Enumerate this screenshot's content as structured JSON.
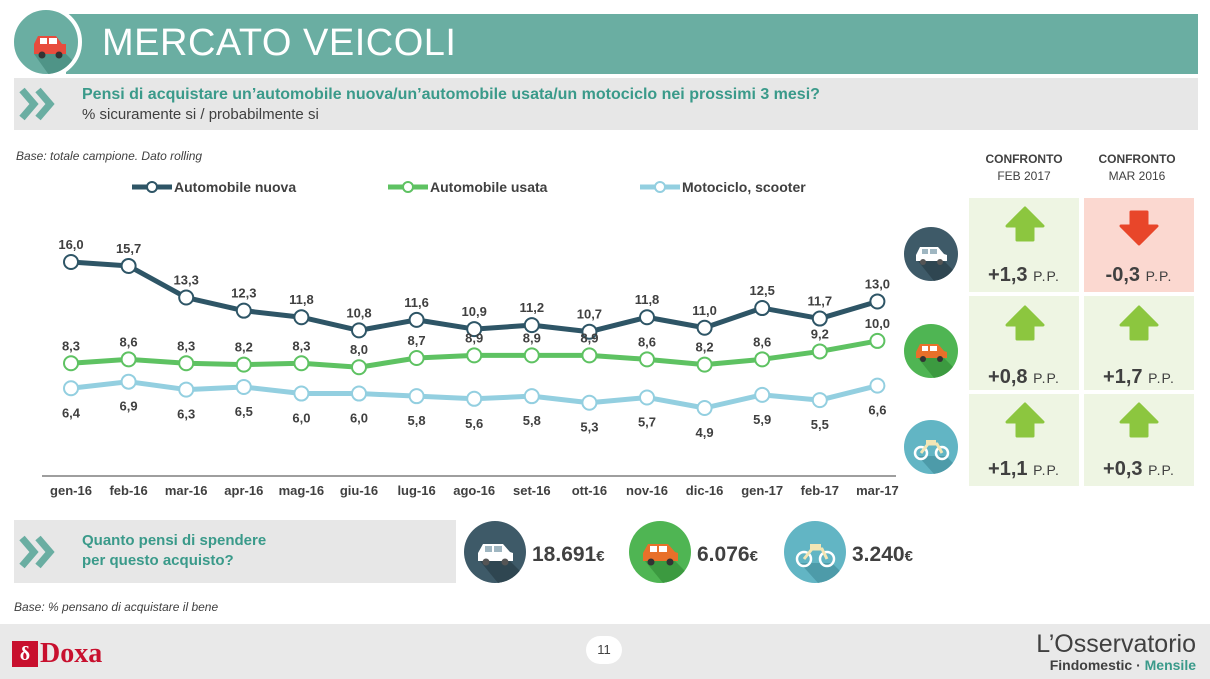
{
  "header": {
    "title": "MERCATO VEICOLI",
    "icon": "car-icon"
  },
  "question": {
    "line1": "Pensi di acquistare un’automobile nuova/un’automobile usata/un motociclo nei prossimi 3 mesi?",
    "line2": "% sicuramente si / probabilmente si"
  },
  "base_note": "Base: totale campione. Dato rolling",
  "chart_data": {
    "type": "line",
    "categories": [
      "gen-16",
      "feb-16",
      "mar-16",
      "apr-16",
      "mag-16",
      "giu-16",
      "lug-16",
      "ago-16",
      "set-16",
      "ott-16",
      "nov-16",
      "dic-16",
      "gen-17",
      "feb-17",
      "mar-17"
    ],
    "series": [
      {
        "name": "Automobile nuova",
        "color": "#2e5566",
        "label_position": "above",
        "values": [
          16.0,
          15.7,
          13.3,
          12.3,
          11.8,
          10.8,
          11.6,
          10.9,
          11.2,
          10.7,
          11.8,
          11.0,
          12.5,
          11.7,
          13.0
        ],
        "labels": [
          "16,0",
          "15,7",
          "13,3",
          "12,3",
          "11,8",
          "10,8",
          "11,6",
          "10,9",
          "11,2",
          "10,7",
          "11,8",
          "11,0",
          "12,5",
          "11,7",
          "13,0"
        ]
      },
      {
        "name": "Automobile usata",
        "color": "#5ec262",
        "label_position": "above",
        "values": [
          8.3,
          8.6,
          8.3,
          8.2,
          8.3,
          8.0,
          8.7,
          8.9,
          8.9,
          8.9,
          8.6,
          8.2,
          8.6,
          9.2,
          10.0
        ],
        "labels": [
          "8,3",
          "8,6",
          "8,3",
          "8,2",
          "8,3",
          "8,0",
          "8,7",
          "8,9",
          "8,9",
          "8,9",
          "8,6",
          "8,2",
          "8,6",
          "9,2",
          "10,0"
        ]
      },
      {
        "name": "Motociclo, scooter",
        "color": "#93cfe0",
        "label_position": "below",
        "values": [
          6.4,
          6.9,
          6.3,
          6.5,
          6.0,
          6.0,
          5.8,
          5.6,
          5.8,
          5.3,
          5.7,
          4.9,
          5.9,
          5.5,
          6.6
        ],
        "labels": [
          "6,4",
          "6,9",
          "6,3",
          "6,5",
          "6,0",
          "6,0",
          "5,8",
          "5,6",
          "5,8",
          "5,3",
          "5,7",
          "4,9",
          "5,9",
          "5,5",
          "6,6"
        ]
      }
    ]
  },
  "comparison": {
    "col1": {
      "title": "CONFRONTO",
      "sub": "FEB 2017"
    },
    "col2": {
      "title": "CONFRONTO",
      "sub": "MAR 2016"
    },
    "unit": "P.P.",
    "rows": [
      {
        "vehicle": "car-icon",
        "circle_color": "#3e5a68",
        "col1": {
          "value": "+1,3",
          "direction": "up"
        },
        "col2": {
          "value": "-0,3",
          "direction": "down"
        }
      },
      {
        "vehicle": "car-icon",
        "circle_color": "#4fb553",
        "col1": {
          "value": "+0,8",
          "direction": "up"
        },
        "col2": {
          "value": "+1,7",
          "direction": "up"
        }
      },
      {
        "vehicle": "motorcycle-icon",
        "circle_color": "#62b5c4",
        "col1": {
          "value": "+1,1",
          "direction": "up"
        },
        "col2": {
          "value": "+0,3",
          "direction": "up"
        }
      }
    ],
    "colors": {
      "up": "#8cc63f",
      "down": "#e8462a"
    }
  },
  "spending": {
    "line1": "Quanto pensi di spendere",
    "line2": "per questo acquisto?",
    "currency": "€",
    "items": [
      {
        "vehicle": "car-icon",
        "color": "#3e5a68",
        "value": "18.691"
      },
      {
        "vehicle": "car-icon",
        "color": "#4fb553",
        "value": "6.076"
      },
      {
        "vehicle": "motorcycle-icon",
        "color": "#62b5c4",
        "value": "3.240"
      }
    ]
  },
  "base_note2": "Base: % pensano di acquistare il bene",
  "footer": {
    "logo_left": "Doxa",
    "page": "11",
    "logo_right_line1": "L’Osservatorio",
    "logo_right_line2a": "Findomestic · ",
    "logo_right_line2b": "Mensile"
  }
}
